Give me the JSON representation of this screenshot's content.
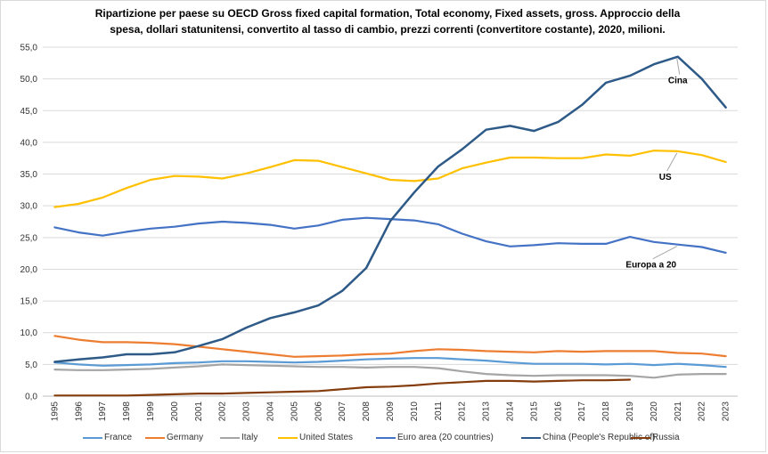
{
  "chart_data": {
    "type": "line",
    "title_line1": "Ripartizione per paese su OECD Gross fixed capital formation, Total economy, Fixed assets, gross. Approccio della",
    "title_line2": "spesa, dollari statunitensi, convertito al tasso di cambio, prezzi correnti (convertitore costante), 2020, milioni.",
    "xlabel": "",
    "ylabel": "",
    "ylim": [
      0,
      55
    ],
    "y_ticks": [
      "0,0",
      "5,0",
      "10,0",
      "15,0",
      "20,0",
      "25,0",
      "30,0",
      "35,0",
      "40,0",
      "45,0",
      "50,0",
      "55,0"
    ],
    "grid": true,
    "legend_position": "bottom",
    "x": [
      "1995",
      "1996",
      "1997",
      "1998",
      "1999",
      "2000",
      "2001",
      "2002",
      "2003",
      "2004",
      "2005",
      "2006",
      "2007",
      "2008",
      "2009",
      "2010",
      "2011",
      "2012",
      "2013",
      "2014",
      "2015",
      "2016",
      "2017",
      "2018",
      "2019",
      "2020",
      "2021",
      "2022",
      "2023"
    ],
    "series": [
      {
        "name": "France",
        "color": "#5b9bd5",
        "values": [
          5.3,
          5.0,
          4.8,
          4.9,
          5.0,
          5.2,
          5.3,
          5.5,
          5.5,
          5.4,
          5.3,
          5.4,
          5.6,
          5.8,
          5.9,
          6.0,
          6.0,
          5.8,
          5.6,
          5.3,
          5.1,
          5.1,
          5.1,
          5.0,
          5.1,
          4.9,
          5.1,
          4.9,
          4.6
        ]
      },
      {
        "name": "Germany",
        "color": "#ed7d31",
        "values": [
          9.5,
          8.9,
          8.5,
          8.5,
          8.4,
          8.2,
          7.8,
          7.4,
          7.0,
          6.6,
          6.2,
          6.3,
          6.4,
          6.6,
          6.7,
          7.1,
          7.4,
          7.3,
          7.1,
          7.0,
          6.9,
          7.1,
          7.0,
          7.1,
          7.1,
          7.1,
          6.8,
          6.7,
          6.3
        ]
      },
      {
        "name": "Italy",
        "color": "#a5a5a5",
        "values": [
          4.2,
          4.1,
          4.1,
          4.2,
          4.3,
          4.5,
          4.7,
          5.0,
          4.9,
          4.8,
          4.7,
          4.6,
          4.6,
          4.5,
          4.6,
          4.6,
          4.4,
          3.9,
          3.5,
          3.3,
          3.2,
          3.3,
          3.3,
          3.3,
          3.2,
          2.9,
          3.4,
          3.5,
          3.5
        ]
      },
      {
        "name": "United States",
        "color": "#ffc000",
        "values": [
          29.8,
          30.3,
          31.3,
          32.8,
          34.1,
          34.7,
          34.6,
          34.3,
          35.1,
          36.1,
          37.2,
          37.1,
          36.1,
          35.1,
          34.1,
          33.9,
          34.3,
          35.9,
          36.8,
          37.6,
          37.6,
          37.5,
          37.5,
          38.1,
          37.9,
          38.7,
          38.6,
          38.0,
          36.9
        ]
      },
      {
        "name": "Euro area (20 countries)",
        "color": "#4472c4",
        "values": [
          26.6,
          25.8,
          25.3,
          25.9,
          26.4,
          26.7,
          27.2,
          27.5,
          27.3,
          27.0,
          26.4,
          26.9,
          27.8,
          28.1,
          27.9,
          27.7,
          27.1,
          25.6,
          24.4,
          23.6,
          23.8,
          24.1,
          24.0,
          24.0,
          25.1,
          24.3,
          23.9,
          23.5,
          22.6
        ]
      },
      {
        "name": "China (People's Republic of)",
        "color": "#2e5a88",
        "values": [
          5.4,
          5.8,
          6.1,
          6.6,
          6.6,
          6.9,
          7.9,
          9.0,
          10.8,
          12.3,
          13.2,
          14.3,
          16.6,
          20.2,
          27.6,
          32.1,
          36.2,
          38.9,
          42.0,
          42.6,
          41.8,
          43.2,
          45.9,
          49.4,
          50.5,
          52.3,
          53.5,
          50.0,
          45.5
        ]
      },
      {
        "name": "Russia",
        "color": "#843c0c",
        "values": [
          0.1,
          0.1,
          0.1,
          0.1,
          0.2,
          0.3,
          0.4,
          0.4,
          0.5,
          0.6,
          0.7,
          0.8,
          1.1,
          1.4,
          1.5,
          1.7,
          2.0,
          2.2,
          2.4,
          2.4,
          2.3,
          2.4,
          2.5,
          2.5,
          2.6,
          null,
          null,
          null,
          null
        ]
      }
    ],
    "annotations": [
      {
        "label": "Cina",
        "series": "China (People's Republic of)",
        "year": "2021"
      },
      {
        "label": "US",
        "series": "United States",
        "year": "2021"
      },
      {
        "label": "Europa a 20",
        "series": "Euro area (20 countries)",
        "year": "2021"
      }
    ]
  }
}
